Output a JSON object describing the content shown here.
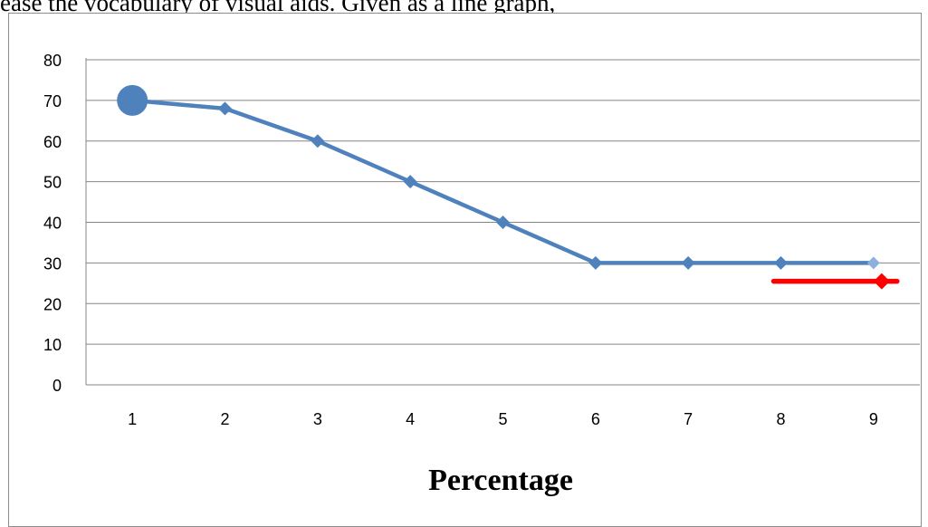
{
  "caption": "ease the vocabulary of visual aids. Given as a line graph,",
  "chart_data": {
    "type": "line",
    "categories": [
      "1",
      "2",
      "3",
      "4",
      "5",
      "6",
      "7",
      "8",
      "9"
    ],
    "series": [
      {
        "values": [
          70,
          68,
          60,
          50,
          40,
          30,
          30,
          30,
          30
        ],
        "color": "#4F81BD"
      },
      {
        "x": [
          8,
          9
        ],
        "values": [
          25.5,
          25.5
        ],
        "color": "#FF0000"
      }
    ],
    "y_ticks": [
      "0",
      "10",
      "20",
      "30",
      "40",
      "50",
      "60",
      "70",
      "80"
    ],
    "ylim": [
      0,
      80
    ],
    "xlabel": "Percentage",
    "ylabel": "",
    "grid": true,
    "legend": "none"
  }
}
